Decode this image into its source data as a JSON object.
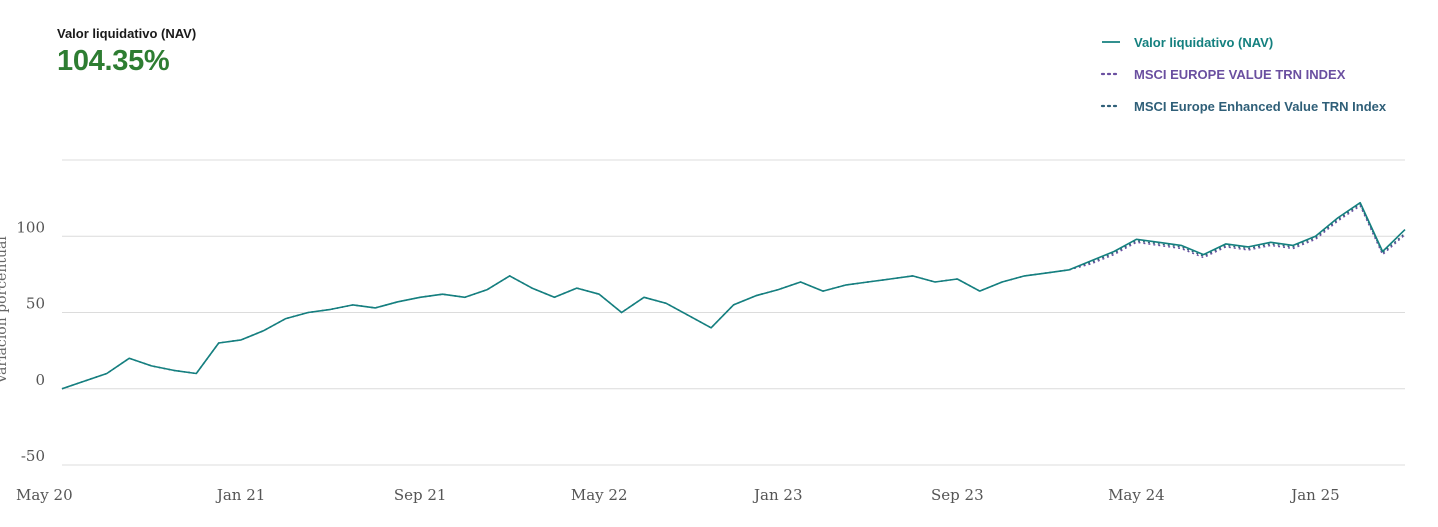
{
  "summary": {
    "label": "Valor liquidativo (NAV)",
    "value": "104.35%",
    "value_color": "#2e7d32"
  },
  "legend": [
    {
      "label": "Valor liquidativo (NAV)",
      "color": "#14807f",
      "style": "solid"
    },
    {
      "label": "MSCI EUROPE VALUE TRN INDEX",
      "color": "#6a4fa0",
      "style": "dotted"
    },
    {
      "label": "MSCI Europe Enhanced Value TRN Index",
      "color": "#2f5f78",
      "style": "dotted"
    }
  ],
  "chart_data": {
    "type": "line",
    "ylabel": "Variación porcentual",
    "ylim": [
      -50,
      150
    ],
    "yticks": [
      -50,
      0,
      50,
      100
    ],
    "xticks": [
      "May 20",
      "Jan 21",
      "Sep 21",
      "May 22",
      "Jan 23",
      "Sep 23",
      "May 24",
      "Jan 25"
    ],
    "xrange": [
      "2020-05",
      "2025-05"
    ],
    "grid": "horizontal",
    "legend_position": "top-right",
    "x": [
      "2020-05",
      "2020-06",
      "2020-07",
      "2020-08",
      "2020-09",
      "2020-10",
      "2020-11",
      "2020-12",
      "2021-01",
      "2021-02",
      "2021-03",
      "2021-04",
      "2021-05",
      "2021-06",
      "2021-07",
      "2021-08",
      "2021-09",
      "2021-10",
      "2021-11",
      "2021-12",
      "2022-01",
      "2022-02",
      "2022-03",
      "2022-04",
      "2022-05",
      "2022-06",
      "2022-07",
      "2022-08",
      "2022-09",
      "2022-10",
      "2022-11",
      "2022-12",
      "2023-01",
      "2023-02",
      "2023-03",
      "2023-04",
      "2023-05",
      "2023-06",
      "2023-07",
      "2023-08",
      "2023-09",
      "2023-10",
      "2023-11",
      "2023-12",
      "2024-01",
      "2024-02",
      "2024-03",
      "2024-04",
      "2024-05",
      "2024-06",
      "2024-07",
      "2024-08",
      "2024-09",
      "2024-10",
      "2024-11",
      "2024-12",
      "2025-01",
      "2025-02",
      "2025-03",
      "2025-04",
      "2025-05"
    ],
    "series": [
      {
        "name": "Valor liquidativo (NAV)",
        "values": [
          0,
          5,
          10,
          20,
          15,
          12,
          10,
          30,
          32,
          38,
          46,
          50,
          52,
          55,
          53,
          57,
          60,
          62,
          60,
          65,
          74,
          66,
          60,
          66,
          62,
          50,
          60,
          56,
          48,
          40,
          55,
          61,
          65,
          70,
          64,
          68,
          70,
          72,
          74,
          70,
          72,
          64,
          70,
          74,
          76,
          78,
          84,
          90,
          98,
          96,
          94,
          88,
          95,
          93,
          96,
          94,
          100,
          112,
          122,
          90,
          104.35
        ]
      },
      {
        "name": "MSCI EUROPE VALUE TRN INDEX",
        "values": [
          0,
          5,
          10,
          20,
          15,
          12,
          10,
          30,
          32,
          38,
          46,
          50,
          52,
          55,
          53,
          57,
          60,
          62,
          60,
          65,
          74,
          66,
          60,
          66,
          62,
          50,
          60,
          56,
          48,
          40,
          55,
          61,
          65,
          70,
          64,
          68,
          70,
          72,
          74,
          70,
          72,
          64,
          70,
          74,
          76,
          78,
          82,
          88,
          96,
          94,
          92,
          86,
          93,
          91,
          94,
          92,
          98,
          110,
          120,
          88,
          101
        ]
      },
      {
        "name": "MSCI Europe Enhanced Value TRN Index",
        "values": [
          0,
          5,
          10,
          20,
          15,
          12,
          10,
          30,
          32,
          38,
          46,
          50,
          52,
          55,
          53,
          57,
          60,
          62,
          60,
          65,
          74,
          66,
          60,
          66,
          62,
          50,
          60,
          56,
          48,
          40,
          55,
          61,
          65,
          70,
          64,
          68,
          70,
          72,
          74,
          70,
          72,
          64,
          70,
          74,
          76,
          78,
          83,
          89,
          97,
          95,
          93,
          87,
          94,
          92,
          95,
          93,
          99,
          111,
          121,
          89,
          102
        ]
      }
    ]
  }
}
